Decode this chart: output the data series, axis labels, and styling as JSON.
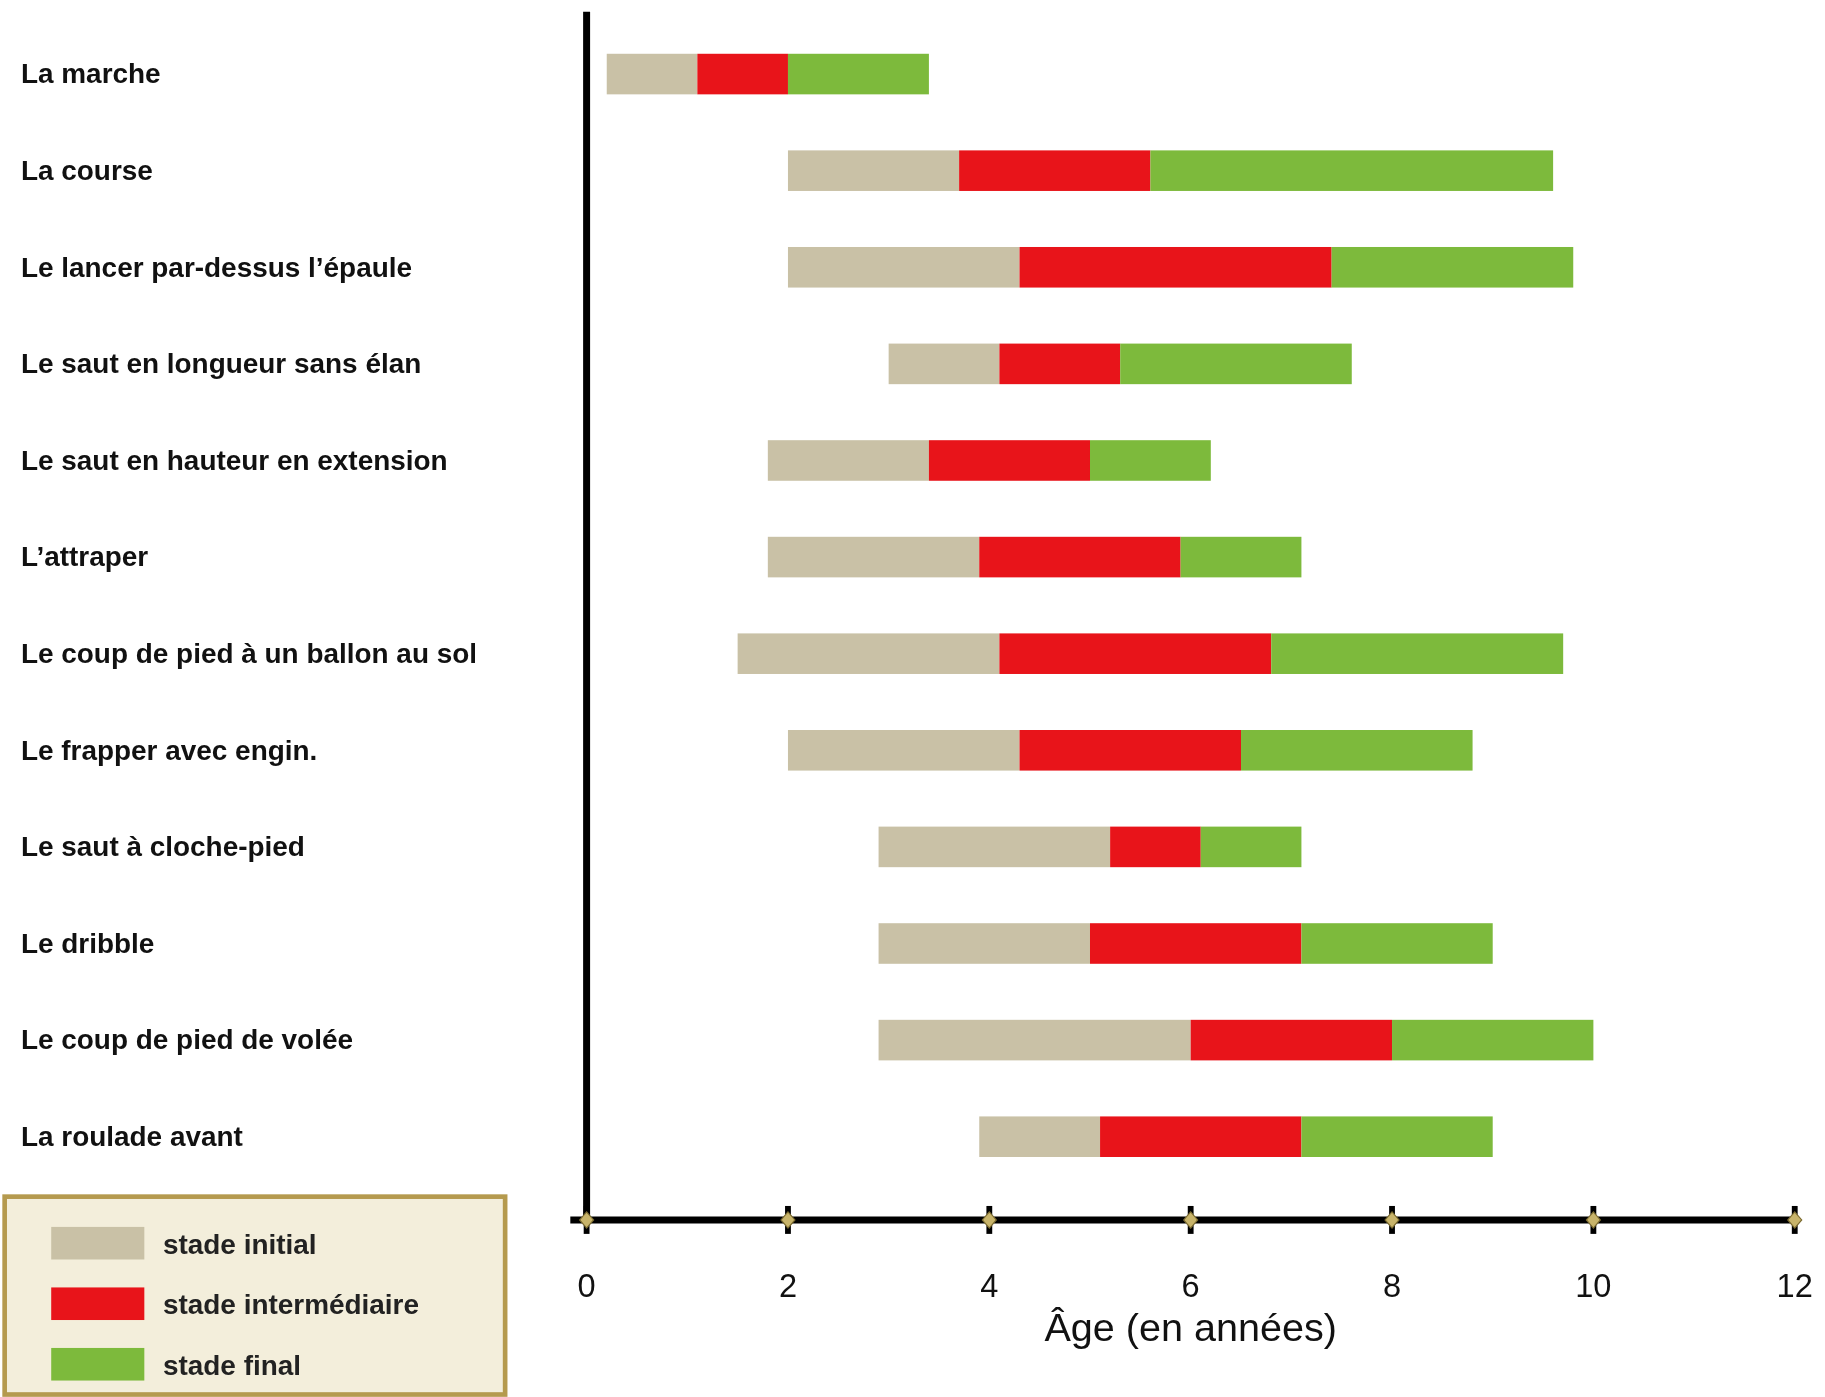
{
  "chart_data": {
    "type": "bar",
    "orientation": "horizontal",
    "xlabel": "Âge (en années)",
    "categories": [
      "La marche",
      "La course",
      "Le lancer par-dessus l’épaule",
      "Le saut en longueur sans élan",
      "Le saut en hauteur en extension",
      "L’attraper",
      "Le coup de pied à un ballon au sol",
      "Le frapper avec engin.",
      "Le saut à cloche-pied",
      "Le dribble",
      "Le coup de pied de volée",
      "La roulade avant"
    ],
    "series": [
      {
        "name": "stade initial",
        "color": "#c9c1a6",
        "base": [
          0.2,
          2.0,
          2.0,
          3.0,
          1.8,
          1.8,
          1.5,
          2.0,
          2.9,
          2.9,
          2.9,
          3.9
        ],
        "values": [
          0.9,
          1.7,
          2.3,
          1.1,
          1.6,
          2.1,
          2.6,
          2.3,
          2.3,
          2.1,
          3.1,
          1.2
        ]
      },
      {
        "name": "stade intermédiaire",
        "color": "#e8141a",
        "base": [
          1.1,
          3.7,
          4.3,
          4.1,
          3.4,
          3.9,
          4.1,
          4.3,
          5.2,
          5.0,
          6.0,
          5.1
        ],
        "values": [
          0.9,
          1.9,
          3.1,
          1.2,
          1.6,
          2.0,
          2.7,
          2.2,
          0.9,
          2.1,
          2.0,
          2.0
        ]
      },
      {
        "name": "stade final",
        "color": "#7dba3c",
        "base": [
          2.0,
          5.6,
          7.4,
          5.3,
          5.0,
          5.9,
          6.8,
          6.5,
          6.1,
          7.1,
          8.0,
          7.1
        ],
        "values": [
          1.4,
          4.0,
          2.4,
          2.3,
          1.2,
          1.2,
          2.9,
          2.3,
          1.0,
          1.9,
          2.0,
          1.9
        ]
      }
    ],
    "xlim": [
      0,
      12
    ],
    "xticks": [
      0,
      2,
      4,
      6,
      8,
      10,
      12
    ],
    "legend": "bottom left"
  }
}
